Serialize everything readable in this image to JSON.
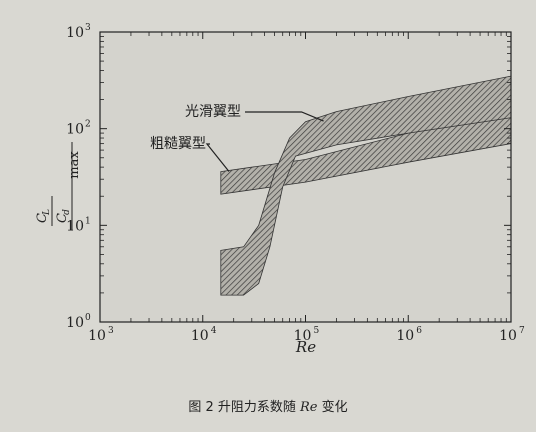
{
  "chart_data": {
    "type": "area",
    "title": "",
    "xlabel": "Re",
    "ylabel": "C_L/C_d |max",
    "x_scale": "log",
    "y_scale": "log",
    "xlim": [
      1000,
      10000000
    ],
    "ylim": [
      1,
      1000
    ],
    "x_ticks": [
      {
        "value": 1000,
        "base": "10",
        "exp": "3"
      },
      {
        "value": 10000,
        "base": "10",
        "exp": "4"
      },
      {
        "value": 100000,
        "base": "10",
        "exp": "5"
      },
      {
        "value": 1000000,
        "base": "10",
        "exp": "6"
      },
      {
        "value": 10000000,
        "base": "10",
        "exp": "7"
      }
    ],
    "y_ticks": [
      {
        "value": 1,
        "base": "10",
        "exp": "0"
      },
      {
        "value": 10,
        "base": "10",
        "exp": "1"
      },
      {
        "value": 100,
        "base": "10",
        "exp": "2"
      },
      {
        "value": 1000,
        "base": "10",
        "exp": "3"
      }
    ],
    "series": [
      {
        "name": "光滑翼型",
        "upper": [
          [
            15000,
            5.5
          ],
          [
            25000,
            6
          ],
          [
            35000,
            10
          ],
          [
            50000,
            35
          ],
          [
            70000,
            80
          ],
          [
            100000,
            118
          ],
          [
            200000,
            150
          ],
          [
            1000000,
            215
          ],
          [
            10000000,
            350
          ]
        ],
        "lower": [
          [
            15000,
            1.9
          ],
          [
            25000,
            1.9
          ],
          [
            35000,
            2.5
          ],
          [
            45000,
            6
          ],
          [
            60000,
            25
          ],
          [
            80000,
            52
          ],
          [
            200000,
            68
          ],
          [
            1000000,
            90
          ],
          [
            10000000,
            130
          ]
        ]
      },
      {
        "name": "粗糙翼型",
        "upper": [
          [
            15000,
            36
          ],
          [
            100000,
            48
          ],
          [
            1000000,
            90
          ],
          [
            10000000,
            165
          ]
        ],
        "lower": [
          [
            15000,
            21
          ],
          [
            100000,
            28
          ],
          [
            1000000,
            45
          ],
          [
            10000000,
            70
          ]
        ]
      }
    ],
    "annotations": [
      {
        "text": "光滑翼型",
        "target": [
          150000,
          120
        ]
      },
      {
        "text": "粗糙翼型",
        "target": [
          18000,
          36
        ]
      }
    ],
    "grid": false,
    "legend": "none"
  },
  "caption": {
    "prefix": "图 2  升阻力系数随 ",
    "var": "Re",
    "suffix": " 变化"
  },
  "colors": {
    "background": "#d9d8d2",
    "plot_background": "#d4d3cd",
    "ink": "#222222",
    "band_fill": "#b3b1aa"
  }
}
